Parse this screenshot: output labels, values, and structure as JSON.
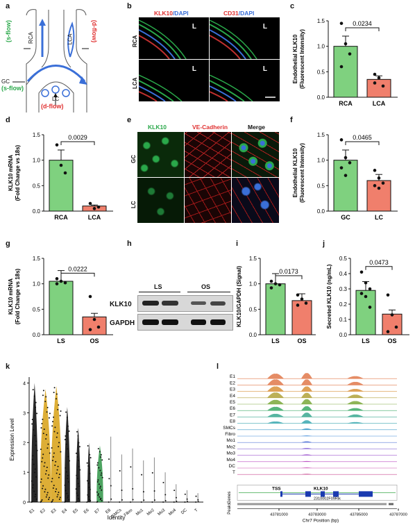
{
  "panels": {
    "a": {
      "letter": "a",
      "rca": "RCA",
      "lca": "LCA",
      "gc": "GC",
      "lc": "LC",
      "s_flow_top": "(s-flow)",
      "d_flow_top": "(d-flow)",
      "s_flow_gc": "(s-flow)",
      "d_flow_lc": "(d-flow)"
    },
    "b": {
      "letter": "b",
      "header_left_a": "KLK10",
      "header_left_b": "/DAPI",
      "header_right_a": "CD31",
      "header_right_b": "/DAPI",
      "row1": "RCA",
      "row2": "LCA",
      "lumen": "L"
    },
    "c": {
      "letter": "c",
      "ylabel1": "Endothelial KLK10",
      "ylabel2": "(Fluorescent Intensity)",
      "p_value": "0.0234",
      "ticks": [
        "0.0",
        "0.5",
        "1.0",
        "1.5"
      ],
      "groups": [
        "RCA",
        "LCA"
      ]
    },
    "d": {
      "letter": "d",
      "ylabel1": "KLK10 mRNA",
      "ylabel2": "(Fold Change vs 18s)",
      "p_value": "0.0029",
      "ticks": [
        "0.0",
        "0.5",
        "1.0",
        "1.5"
      ],
      "groups": [
        "RCA",
        "LCA"
      ]
    },
    "e": {
      "letter": "e",
      "col1": "KLK10",
      "col2": "VE-Cadherin",
      "col3": "Merge",
      "row1": "GC",
      "row2": "LC"
    },
    "f": {
      "letter": "f",
      "ylabel1": "Endothelial KLK10",
      "ylabel2": "(Fluorescent Intensity)",
      "p_value": "0.0465",
      "ticks": [
        "0.0",
        "0.5",
        "1.0",
        "1.5"
      ],
      "groups": [
        "GC",
        "LC"
      ]
    },
    "g": {
      "letter": "g",
      "ylabel1": "KLK10 mRNA",
      "ylabel2": "(Fold Change vs 18s)",
      "p_value": "0.0222",
      "ticks": [
        "0.0",
        "0.5",
        "1.0",
        "1.5"
      ],
      "groups": [
        "LS",
        "OS"
      ]
    },
    "h": {
      "letter": "h",
      "ls": "LS",
      "os": "OS",
      "band1": "KLK10",
      "band2": "GAPDH"
    },
    "i": {
      "letter": "i",
      "ylabel": "KLK10/GAPDH (Signal)",
      "p_value": "0.0173",
      "ticks": [
        "0.0",
        "0.5",
        "1.0",
        "1.5"
      ],
      "groups": [
        "LS",
        "OS"
      ]
    },
    "j": {
      "letter": "j",
      "ylabel": "Secreted KLK10 (ng/mL)",
      "p_value": "0.0473",
      "ticks": [
        "0.0",
        "0.1",
        "0.2",
        "0.3",
        "0.4",
        "0.5"
      ],
      "groups": [
        "LS",
        "OS"
      ]
    },
    "k": {
      "letter": "k",
      "ylabel": "Expression Level",
      "xlabel": "Identity",
      "yticks": [
        "0",
        "1",
        "2",
        "3",
        "4"
      ],
      "categories": [
        "E1",
        "E2",
        "E3",
        "E4",
        "E5",
        "E6",
        "E7",
        "E8",
        "SMCs",
        "Fibro",
        "Mo1",
        "Mo2",
        "Mo3",
        "Mo4",
        "DC",
        "T"
      ]
    },
    "l": {
      "letter": "l",
      "tracks": [
        "E1",
        "E2",
        "E3",
        "E4",
        "E5",
        "E6",
        "E7",
        "E8",
        "SMCs",
        "Fibro",
        "Mo1",
        "Mo2",
        "Mo3",
        "Mo4",
        "DC",
        "T"
      ],
      "tss": "TSS",
      "gene": "KLK10",
      "gene2": "2310002F09Rik",
      "genes_label": "Genes",
      "peaks_label": "Peaks",
      "xticks": [
        "43781000",
        "43783000",
        "43785000",
        "43787000"
      ],
      "xlabel": "Chr7 Position (bp)"
    }
  },
  "chart_data": [
    {
      "type": "bar",
      "panel": "c",
      "categories": [
        "RCA",
        "LCA"
      ],
      "values": [
        1.0,
        0.35
      ],
      "points": [
        [
          1.45,
          1.05,
          0.85,
          0.6
        ],
        [
          0.45,
          0.38,
          0.22,
          0.28
        ]
      ],
      "ylim": [
        0,
        1.5
      ],
      "p_value": "0.0234",
      "colors": [
        "#7fd17f",
        "#f07f6c"
      ]
    },
    {
      "type": "bar",
      "panel": "d",
      "categories": [
        "RCA",
        "LCA"
      ],
      "values": [
        1.0,
        0.1
      ],
      "points": [
        [
          1.3,
          0.9,
          0.75
        ],
        [
          0.15,
          0.05,
          0.08
        ]
      ],
      "ylim": [
        0,
        1.5
      ],
      "p_value": "0.0029",
      "colors": [
        "#7fd17f",
        "#f07f6c"
      ]
    },
    {
      "type": "bar",
      "panel": "f",
      "categories": [
        "GC",
        "LC"
      ],
      "values": [
        1.0,
        0.6
      ],
      "points": [
        [
          1.4,
          1.05,
          0.95,
          0.85,
          0.7
        ],
        [
          0.8,
          0.65,
          0.55,
          0.5,
          0.45
        ]
      ],
      "ylim": [
        0,
        1.5
      ],
      "p_value": "0.0465",
      "colors": [
        "#7fd17f",
        "#f07f6c"
      ]
    },
    {
      "type": "bar",
      "panel": "g",
      "categories": [
        "LS",
        "OS"
      ],
      "values": [
        1.05,
        0.35
      ],
      "points": [
        [
          1.1,
          1.05,
          1.02,
          1.0
        ],
        [
          0.75,
          0.3,
          0.15,
          0.1
        ]
      ],
      "ylim": [
        0,
        1.5
      ],
      "p_value": "0.0222",
      "colors": [
        "#7fd17f",
        "#f07f6c"
      ]
    },
    {
      "type": "bar",
      "panel": "i",
      "categories": [
        "LS",
        "OS"
      ],
      "values": [
        1.0,
        0.67
      ],
      "points": [
        [
          1.05,
          1.0,
          0.98,
          0.92
        ],
        [
          0.78,
          0.7,
          0.62,
          0.58
        ]
      ],
      "ylim": [
        0,
        1.5
      ],
      "p_value": "0.0173",
      "colors": [
        "#7fd17f",
        "#f07f6c"
      ]
    },
    {
      "type": "bar",
      "panel": "j",
      "categories": [
        "LS",
        "OS"
      ],
      "values": [
        0.29,
        0.135
      ],
      "points": [
        [
          0.41,
          0.34,
          0.3,
          0.27,
          0.25,
          0.18
        ],
        [
          0.26,
          0.13,
          0.05,
          0.02
        ]
      ],
      "ylim": [
        0,
        0.5
      ],
      "p_value": "0.0473",
      "colors": [
        "#7fd17f",
        "#f07f6c"
      ]
    },
    {
      "type": "violin",
      "panel": "k",
      "categories": [
        "E1",
        "E2",
        "E3",
        "E4",
        "E5",
        "E6",
        "E7",
        "E8",
        "SMCs",
        "Fibro",
        "Mo1",
        "Mo2",
        "Mo3",
        "Mo4",
        "DC",
        "T"
      ],
      "max": [
        4.0,
        3.8,
        3.9,
        3.2,
        2.5,
        2.0,
        1.9,
        2.2,
        1.6,
        1.8,
        1.4,
        1.5,
        1.0,
        0.6,
        0.4,
        0.3
      ],
      "width": [
        0.6,
        1.0,
        1.0,
        0.5,
        0.4,
        0.3,
        0.6,
        0.05,
        0.03,
        0.03,
        0.02,
        0.02,
        0.02,
        0.02,
        0.02,
        0.02
      ],
      "colors": [
        "#111111",
        "#d9a520",
        "#d9a520",
        "#111111",
        "#111111",
        "#111111",
        "#3a9a50",
        "#aaaaaa",
        "#aaaaaa",
        "#aaaaaa",
        "#aaaaaa",
        "#aaaaaa",
        "#aaaaaa",
        "#aaaaaa",
        "#aaaaaa",
        "#aaaaaa"
      ],
      "ylim": [
        0,
        4.2
      ]
    },
    {
      "type": "area",
      "panel": "l",
      "tracks": [
        "E1",
        "E2",
        "E3",
        "E4",
        "E5",
        "E6",
        "E7",
        "E8",
        "SMCs",
        "Fibro",
        "Mo1",
        "Mo2",
        "Mo3",
        "Mo4",
        "DC",
        "T"
      ],
      "peak_heights": [
        [
          0.8,
          0.9,
          0.4
        ],
        [
          0.9,
          0.9,
          0.5
        ],
        [
          0.8,
          0.8,
          0.4
        ],
        [
          0.85,
          0.8,
          0.5
        ],
        [
          0.7,
          0.8,
          0.5
        ],
        [
          0.6,
          0.7,
          0.4
        ],
        [
          0.5,
          0.7,
          0.4
        ],
        [
          0.3,
          0.5,
          0.2
        ],
        [
          0.0,
          0.2,
          0.0
        ],
        [
          0.0,
          0.1,
          0.0
        ],
        [
          0.0,
          0.2,
          0.0
        ],
        [
          0.0,
          0.15,
          0.0
        ],
        [
          0.0,
          0.15,
          0.0
        ],
        [
          0.0,
          0.1,
          0.0
        ],
        [
          0.0,
          0.1,
          0.0
        ],
        [
          0.0,
          0.1,
          0.0
        ]
      ],
      "colors": [
        "#e0784a",
        "#e0784a",
        "#d8913a",
        "#b0a23a",
        "#7aa83a",
        "#3aa865",
        "#3aa890",
        "#3aa8b0",
        "#3a98c8",
        "#3a88d8",
        "#5a7ad8",
        "#8a6ad8",
        "#a05ad0",
        "#b84ac0",
        "#c84ab0",
        "#c84a90"
      ]
    }
  ]
}
